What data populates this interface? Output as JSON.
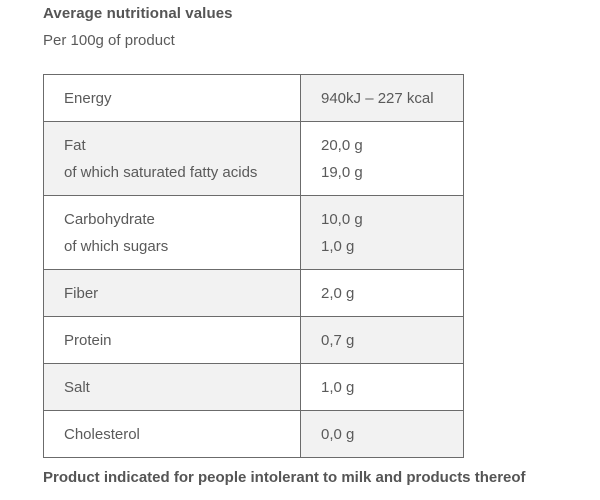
{
  "header": {
    "title": "Average nutritional values",
    "subtitle": "Per 100g of product"
  },
  "table": {
    "rows": [
      {
        "label_lines": [
          "Energy"
        ],
        "value_lines": [
          "940kJ – 227 kcal"
        ]
      },
      {
        "label_lines": [
          "Fat",
          "of which saturated fatty acids"
        ],
        "value_lines": [
          "20,0 g",
          "19,0 g"
        ]
      },
      {
        "label_lines": [
          "Carbohydrate",
          "of which sugars"
        ],
        "value_lines": [
          "10,0 g",
          "1,0 g"
        ]
      },
      {
        "label_lines": [
          "Fiber"
        ],
        "value_lines": [
          "2,0 g"
        ]
      },
      {
        "label_lines": [
          "Protein"
        ],
        "value_lines": [
          "0,7 g"
        ]
      },
      {
        "label_lines": [
          "Salt"
        ],
        "value_lines": [
          "1,0 g"
        ]
      },
      {
        "label_lines": [
          "Cholesterol"
        ],
        "value_lines": [
          "0,0 g"
        ]
      }
    ]
  },
  "footer": {
    "note": "Product indicated for people intolerant to milk and products thereof"
  },
  "colors": {
    "border": "#6b6b6b",
    "shaded_cell": "#f2f2f2",
    "text": "#5a5a5a"
  }
}
